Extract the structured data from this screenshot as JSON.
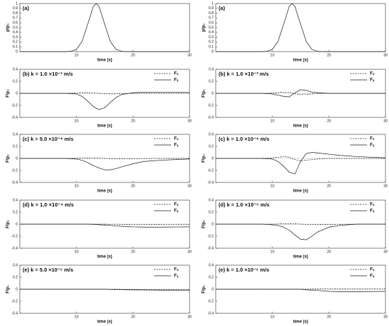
{
  "chart_data": [
    {
      "type": "line",
      "title": "(a)",
      "ylabel": "p/p₀",
      "xlabel": "time (s)",
      "color": "#222222",
      "x": [
        0,
        5,
        8,
        9,
        10,
        11,
        12,
        13,
        13.5,
        14,
        15,
        16,
        17,
        18,
        19,
        22,
        30
      ],
      "values": [
        0,
        0,
        0,
        0.006,
        0.047,
        0.21,
        0.57,
        0.94,
        1,
        0.94,
        0.57,
        0.21,
        0.047,
        0.006,
        0,
        0,
        0
      ],
      "xlim": [
        0,
        30
      ],
      "xticks": [
        10,
        20,
        30
      ],
      "ylim": [
        0,
        1
      ],
      "yticks": [
        0,
        0.1,
        0.2,
        0.3,
        0.4,
        0.5,
        0.6,
        0.7,
        0.8,
        0.9,
        1
      ]
    },
    {
      "type": "line",
      "title": "(a)",
      "ylabel": "p/p₀",
      "xlabel": "time (s)",
      "color": "#222222",
      "x": [
        0,
        5,
        8,
        9,
        10,
        11,
        12,
        13,
        13.5,
        14,
        15,
        16,
        17,
        18,
        19,
        22,
        30
      ],
      "values": [
        0,
        0,
        0,
        0.006,
        0.047,
        0.21,
        0.57,
        0.94,
        1,
        0.94,
        0.57,
        0.21,
        0.047,
        0.006,
        0,
        0,
        0
      ],
      "xlim": [
        0,
        30
      ],
      "xticks": [
        10,
        20,
        30
      ],
      "ylim": [
        0,
        1
      ],
      "yticks": [
        0,
        0.1,
        0.2,
        0.3,
        0.4,
        0.5,
        0.6,
        0.7,
        0.8,
        0.9,
        1
      ]
    },
    {
      "type": "line",
      "title": "(b)  k = 1.0 ×10⁻³ m/s",
      "ylabel": "F/p₀",
      "xlabel": "time (s)",
      "legend": "upper right",
      "x": [
        0,
        5,
        8,
        10,
        11,
        12,
        13,
        14,
        15,
        16,
        17,
        18,
        20,
        22,
        25,
        30
      ],
      "series": [
        {
          "name": "Fₓ",
          "color": "#222222",
          "style": "dashed",
          "values": [
            0,
            0,
            0,
            0.005,
            0.01,
            0.01,
            0.005,
            0,
            -0.005,
            -0.01,
            -0.01,
            -0.005,
            0,
            0,
            0,
            0
          ]
        },
        {
          "name": "Fᵧ",
          "color": "#222222",
          "style": "solid",
          "values": [
            0,
            0,
            0,
            -0.01,
            -0.05,
            -0.13,
            -0.22,
            -0.27,
            -0.24,
            -0.15,
            -0.07,
            -0.02,
            0.01,
            0.02,
            0.02,
            0.02
          ]
        }
      ],
      "xlim": [
        0,
        30
      ],
      "xticks": [
        10,
        20,
        30
      ],
      "ylim": [
        -0.4,
        0.4
      ],
      "yticks": [
        -0.4,
        -0.2,
        0,
        0.2,
        0.4
      ]
    },
    {
      "type": "line",
      "title": "(b)  k = 1.0 ×10⁻³ m/s",
      "ylabel": "F/p₀",
      "xlabel": "time (s)",
      "legend": "upper right",
      "x": [
        0,
        5,
        8,
        10,
        11,
        12,
        13,
        14,
        15,
        16,
        17,
        18,
        20,
        22,
        25,
        30
      ],
      "series": [
        {
          "name": "Fₓ",
          "color": "#222222",
          "style": "dashed",
          "values": [
            0,
            0,
            0,
            0.005,
            0.01,
            0.02,
            0.02,
            -0.01,
            -0.02,
            -0.02,
            -0.01,
            0,
            0,
            0,
            0,
            0
          ]
        },
        {
          "name": "Fᵧ",
          "color": "#222222",
          "style": "solid",
          "values": [
            0,
            0,
            0,
            -0.01,
            -0.03,
            -0.05,
            -0.06,
            0.01,
            0.06,
            0.05,
            0.02,
            0.01,
            0,
            0,
            0,
            0
          ]
        }
      ],
      "xlim": [
        0,
        30
      ],
      "xticks": [
        10,
        20,
        30
      ],
      "ylim": [
        -0.4,
        0.4
      ],
      "yticks": [
        -0.4,
        -0.2,
        0,
        0.2,
        0.4
      ]
    },
    {
      "type": "line",
      "title": "(c)  k = 5.0 ×10⁻⁴ m/s",
      "ylabel": "F/p₀",
      "xlabel": "time (s)",
      "legend": "upper right",
      "x": [
        0,
        5,
        8,
        10,
        11,
        12,
        13,
        14,
        15,
        16,
        17,
        18,
        20,
        22,
        25,
        30
      ],
      "series": [
        {
          "name": "Fₓ",
          "color": "#222222",
          "style": "dashed",
          "values": [
            0,
            0,
            0,
            0.003,
            0.005,
            0.008,
            0.008,
            0.005,
            0,
            -0.004,
            -0.006,
            -0.006,
            -0.004,
            -0.002,
            0,
            0
          ]
        },
        {
          "name": "Fᵧ",
          "color": "#222222",
          "style": "solid",
          "values": [
            0,
            0,
            0,
            -0.01,
            -0.03,
            -0.07,
            -0.12,
            -0.16,
            -0.19,
            -0.19,
            -0.17,
            -0.14,
            -0.09,
            -0.05,
            -0.03,
            -0.01
          ]
        }
      ],
      "xlim": [
        0,
        30
      ],
      "xticks": [
        10,
        20,
        30
      ],
      "ylim": [
        -0.4,
        0.4
      ],
      "yticks": [
        -0.4,
        -0.2,
        0,
        0.2,
        0.4
      ]
    },
    {
      "type": "line",
      "title": "(c)  k = 1.0 ×10⁻⁴ m/s",
      "ylabel": "F/p₀",
      "xlabel": "time (s)",
      "legend": "upper right",
      "x": [
        0,
        5,
        8,
        10,
        11,
        12,
        13,
        14,
        15,
        16,
        17,
        18,
        20,
        22,
        25,
        30
      ],
      "series": [
        {
          "name": "Fₓ",
          "color": "#222222",
          "style": "dashed",
          "values": [
            0,
            0,
            0,
            0.01,
            0.02,
            0.03,
            0.02,
            -0.02,
            -0.04,
            -0.03,
            -0.02,
            -0.01,
            0,
            0,
            0,
            0
          ]
        },
        {
          "name": "Fᵧ",
          "color": "#222222",
          "style": "solid",
          "values": [
            0,
            0,
            0,
            -0.01,
            -0.05,
            -0.13,
            -0.23,
            -0.26,
            -0.05,
            0.08,
            0.1,
            0.09,
            0.07,
            0.05,
            0.03,
            0.01
          ]
        }
      ],
      "xlim": [
        0,
        30
      ],
      "xticks": [
        10,
        20,
        30
      ],
      "ylim": [
        -0.4,
        0.4
      ],
      "yticks": [
        -0.4,
        -0.2,
        0,
        0.2,
        0.4
      ]
    },
    {
      "type": "line",
      "title": "(d)  k = 1.0 ×10⁻⁴ m/s",
      "ylabel": "F/p₀",
      "xlabel": "time (s)",
      "legend": "upper right",
      "x": [
        0,
        5,
        8,
        10,
        11,
        12,
        13,
        14,
        15,
        16,
        17,
        18,
        20,
        22,
        25,
        30
      ],
      "series": [
        {
          "name": "Fₓ",
          "color": "#222222",
          "style": "dashed",
          "values": [
            0,
            0,
            0,
            0,
            0,
            0,
            0,
            0,
            0,
            -0.002,
            -0.003,
            -0.004,
            -0.005,
            -0.005,
            -0.004,
            -0.003
          ]
        },
        {
          "name": "Fᵧ",
          "color": "#222222",
          "style": "solid",
          "values": [
            0,
            0,
            0,
            0,
            0,
            0,
            -0.005,
            -0.01,
            -0.015,
            -0.02,
            -0.03,
            -0.035,
            -0.045,
            -0.05,
            -0.05,
            -0.045
          ]
        }
      ],
      "xlim": [
        0,
        30
      ],
      "xticks": [
        10,
        20,
        30
      ],
      "ylim": [
        -0.4,
        0.4
      ],
      "yticks": [
        -0.4,
        -0.2,
        0,
        0.2,
        0.4
      ]
    },
    {
      "type": "line",
      "title": "(d)  k = 1.0 ×10⁻⁵ m/s",
      "ylabel": "F/p₀",
      "xlabel": "time (s)",
      "legend": "upper right",
      "x": [
        0,
        5,
        8,
        10,
        11,
        12,
        13,
        14,
        15,
        16,
        17,
        18,
        20,
        22,
        25,
        30
      ],
      "series": [
        {
          "name": "Fₓ",
          "color": "#222222",
          "style": "dashed",
          "values": [
            0,
            0,
            0,
            0,
            0.003,
            0.006,
            0.008,
            0.006,
            0,
            -0.005,
            -0.008,
            -0.008,
            -0.005,
            -0.003,
            0,
            0
          ]
        },
        {
          "name": "Fᵧ",
          "color": "#222222",
          "style": "solid",
          "values": [
            0,
            0,
            0,
            -0.01,
            -0.02,
            -0.05,
            -0.1,
            -0.18,
            -0.25,
            -0.26,
            -0.2,
            -0.13,
            -0.05,
            -0.02,
            0,
            0
          ]
        }
      ],
      "xlim": [
        0,
        30
      ],
      "xticks": [
        10,
        20,
        30
      ],
      "ylim": [
        -0.4,
        0.4
      ],
      "yticks": [
        -0.4,
        -0.2,
        0,
        0.2,
        0.4
      ]
    },
    {
      "type": "line",
      "title": "(e)  k = 5.0 ×10⁻⁵ m/s",
      "ylabel": "F/p₀",
      "xlabel": "time (s)",
      "legend": "upper right",
      "x": [
        0,
        5,
        8,
        10,
        11,
        12,
        13,
        14,
        15,
        16,
        17,
        18,
        20,
        22,
        25,
        30
      ],
      "series": [
        {
          "name": "Fₓ",
          "color": "#222222",
          "style": "dashed",
          "values": [
            0,
            0,
            0,
            0,
            0,
            0,
            0,
            0,
            0,
            0,
            0,
            -0.002,
            -0.004,
            -0.006,
            -0.008,
            -0.01
          ]
        },
        {
          "name": "Fᵧ",
          "color": "#222222",
          "style": "solid",
          "values": [
            0,
            0,
            0,
            0,
            0,
            0,
            0,
            0,
            0,
            -0.005,
            -0.006,
            -0.008,
            -0.01,
            -0.012,
            -0.015,
            -0.02
          ]
        }
      ],
      "xlim": [
        0,
        30
      ],
      "xticks": [
        10,
        20,
        30
      ],
      "ylim": [
        -0.4,
        0.4
      ],
      "yticks": [
        -0.4,
        -0.2,
        0,
        0.2,
        0.4
      ]
    },
    {
      "type": "line",
      "title": "(e)  k = 1.0 ×10⁻⁶ m/s",
      "ylabel": "F/p₀",
      "xlabel": "time (s)",
      "legend": "upper right",
      "x": [
        0,
        5,
        8,
        10,
        11,
        12,
        13,
        14,
        15,
        16,
        17,
        18,
        20,
        22,
        25,
        30
      ],
      "series": [
        {
          "name": "Fₓ",
          "color": "#222222",
          "style": "dashed",
          "values": [
            0,
            0,
            0,
            0,
            0,
            0,
            0,
            0,
            0,
            0.002,
            0.004,
            0.005,
            0.005,
            0.005,
            0.005,
            0.005
          ]
        },
        {
          "name": "Fᵧ",
          "color": "#222222",
          "style": "solid",
          "values": [
            0,
            0,
            0,
            0,
            0,
            0,
            0,
            0,
            0,
            -0.01,
            -0.015,
            -0.02,
            -0.035,
            -0.04,
            -0.04,
            -0.035
          ]
        }
      ],
      "xlim": [
        0,
        30
      ],
      "xticks": [
        10,
        20,
        30
      ],
      "ylim": [
        -0.4,
        0.4
      ],
      "yticks": [
        -0.4,
        -0.2,
        0,
        0.2,
        0.4
      ]
    }
  ]
}
